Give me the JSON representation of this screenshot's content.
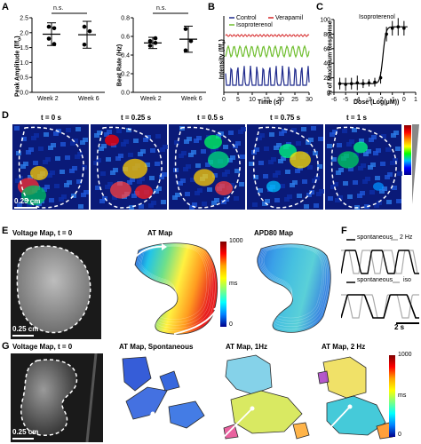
{
  "panels": {
    "A": {
      "letter": "A",
      "left": {
        "ylabel": "Peak Amplitude (f/f",
        "ylabel_sub": "o",
        "ylabel_end": ")",
        "yticks": [
          "0.0",
          "0.5",
          "1.0",
          "1.5",
          "2.0",
          "2.5"
        ],
        "categories": [
          "Week 2",
          "Week 6"
        ],
        "sig": "n.s.",
        "means": [
          1.95,
          1.93
        ],
        "errors": [
          0.38,
          0.45
        ],
        "points": [
          [
            2.2,
            2.15,
            1.8,
            1.62
          ],
          [
            2.2,
            2.05,
            1.6
          ]
        ]
      },
      "right": {
        "ylabel": "Beat Rate (Hz)",
        "yticks": [
          "0.0",
          "0.2",
          "0.4",
          "0.6",
          "0.8"
        ],
        "categories": [
          "Week 2",
          "Week 6"
        ],
        "sig": "n.s.",
        "means": [
          0.53,
          0.57
        ],
        "errors": [
          0.06,
          0.14
        ],
        "points": [
          [
            0.55,
            0.53,
            0.5,
            0.58
          ],
          [
            0.68,
            0.55,
            0.45
          ]
        ]
      }
    },
    "B": {
      "letter": "B",
      "legend": [
        "Control",
        "Verapamil",
        "Isoproterenol"
      ],
      "legend_colors": [
        "#1f2a8c",
        "#d62728",
        "#6fbe2e"
      ],
      "ylabel": "Intensity (f/f",
      "ylabel_sub": "o",
      "ylabel_end": ")",
      "xlabel": "Time (s)",
      "xticks": [
        "0",
        "5",
        "10",
        "15",
        "20",
        "25",
        "30"
      ]
    },
    "C": {
      "letter": "C",
      "title": "Isoproterenol",
      "ylabel": "% of Maximum Response",
      "xlabel": "Dose (Log(μM))",
      "yticks": [
        "0",
        "20",
        "40",
        "60",
        "80",
        "100"
      ],
      "xticks": [
        "-6",
        "-5",
        "-4",
        "-3",
        "-2",
        "-1",
        "0",
        "1"
      ]
    },
    "D": {
      "letter": "D",
      "times": [
        "t = 0 s",
        "t = 0.25 s",
        "t = 0.5 s",
        "t = 0.75 s",
        "t = 1 s"
      ],
      "scale": "0.25 cm"
    },
    "E": {
      "letter": "E",
      "titles": [
        "Voltage Map, t = 0",
        "AT Map",
        "APD80 Map"
      ],
      "scale": "0.25 cm",
      "cbar_top": "1000",
      "cbar_mid": "ms",
      "cbar_bottom": "0"
    },
    "F": {
      "letter": "F",
      "trace1_a": "spontaneous",
      "trace1_b": "2 Hz",
      "trace2_a": "spontaneous",
      "trace2_b": "iso",
      "scale": "2 s"
    },
    "G": {
      "letter": "G",
      "titles": [
        "Voltage Map, t = 0",
        "AT Map, Spontaneous",
        "AT Map, 1Hz",
        "AT Map, 2 Hz"
      ],
      "scale": "0.25 cm",
      "cbar_top": "1000",
      "cbar_mid": "ms",
      "cbar_bottom": "0"
    }
  }
}
